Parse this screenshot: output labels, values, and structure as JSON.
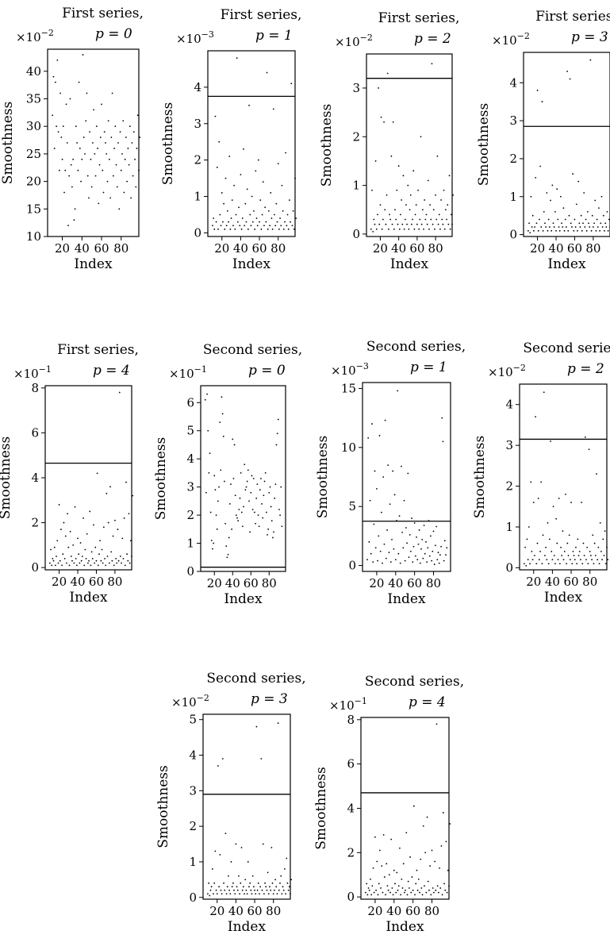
{
  "chart_data": [
    {
      "type": "scatter",
      "title_line1": "First series,",
      "title_line2": "p = 0",
      "multiplier": "×10",
      "multiplier_exp": "−2",
      "xlabel": "Index",
      "ylabel": "Smoothness",
      "xticks": [
        20,
        40,
        60,
        80
      ],
      "xlim": [
        5,
        98
      ],
      "ylim": [
        10,
        44
      ],
      "yticks": [
        10,
        15,
        20,
        25,
        30,
        35,
        40
      ],
      "threshold": null,
      "y": [
        32,
        39,
        26,
        38,
        30,
        42,
        29,
        22,
        36,
        28,
        24,
        30,
        18,
        22,
        34,
        27,
        12,
        21,
        35,
        23,
        19,
        24,
        13,
        15,
        30,
        27,
        22,
        38,
        26,
        20,
        24,
        43,
        28,
        25,
        31,
        36,
        21,
        17,
        29,
        24,
        19,
        27,
        33,
        25,
        21,
        30,
        26,
        16,
        23,
        28,
        34,
        22,
        18,
        29,
        27,
        25,
        20,
        31,
        24,
        17,
        28,
        36,
        21,
        26,
        30,
        23,
        19,
        27,
        15,
        29,
        22,
        25,
        31,
        18,
        24,
        28,
        20,
        26,
        23,
        30,
        17,
        27,
        21,
        29,
        24,
        19,
        26,
        32,
        22,
        28
      ]
    },
    {
      "type": "scatter",
      "title_line1": "First series,",
      "title_line2": "p = 1",
      "multiplier": "×10",
      "multiplier_exp": "−3",
      "xlabel": "Index",
      "ylabel": "Smoothness",
      "xticks": [
        20,
        40,
        60,
        80
      ],
      "xlim": [
        5,
        98
      ],
      "ylim": [
        -0.1,
        5
      ],
      "yticks": [
        0,
        1,
        2,
        3,
        4
      ],
      "threshold": 3.75,
      "y": [
        0.2,
        0.4,
        0.1,
        3.2,
        0.3,
        1.8,
        0.1,
        2.5,
        0.5,
        0.2,
        1.1,
        0.3,
        0.8,
        0.1,
        1.5,
        0.2,
        0.6,
        0.3,
        2.1,
        0.1,
        0.4,
        0.9,
        0.2,
        1.3,
        0.1,
        0.5,
        4.8,
        0.3,
        0.7,
        0.2,
        1.6,
        0.1,
        0.4,
        2.3,
        0.2,
        0.8,
        0.3,
        1.2,
        0.1,
        3.5,
        0.5,
        0.2,
        1.0,
        0.3,
        0.6,
        0.1,
        1.7,
        0.4,
        0.2,
        2.0,
        0.3,
        0.9,
        0.1,
        0.5,
        1.4,
        0.2,
        0.7,
        0.3,
        4.4,
        0.1,
        0.6,
        0.2,
        1.1,
        0.4,
        0.1,
        3.4,
        0.5,
        0.2,
        0.8,
        0.3,
        1.9,
        0.1,
        0.4,
        0.2,
        1.3,
        0.6,
        0.1,
        0.3,
        2.2,
        0.2,
        0.5,
        0.1,
        0.9,
        0.3,
        4.1,
        0.2,
        0.6,
        0.1,
        1.5,
        0.4
      ]
    },
    {
      "type": "scatter",
      "title_line1": "First series,",
      "title_line2": "p = 2",
      "multiplier": "×10",
      "multiplier_exp": "−2",
      "xlabel": "Index",
      "ylabel": "Smoothness",
      "xticks": [
        20,
        40,
        60,
        80
      ],
      "xlim": [
        5,
        98
      ],
      "ylim": [
        -0.05,
        3.7
      ],
      "yticks": [
        0,
        1,
        2,
        3
      ],
      "threshold": 3.2,
      "y": [
        0.1,
        0.9,
        0.05,
        0.3,
        0.2,
        1.5,
        0.1,
        0.4,
        3.0,
        0.2,
        0.6,
        2.4,
        0.1,
        0.3,
        2.3,
        0.5,
        0.2,
        0.8,
        3.3,
        0.1,
        0.4,
        0.3,
        1.6,
        0.2,
        2.3,
        0.1,
        0.5,
        0.3,
        0.9,
        0.2,
        1.4,
        0.1,
        0.4,
        0.7,
        0.2,
        1.2,
        0.1,
        0.3,
        0.6,
        0.2,
        1.0,
        0.1,
        0.5,
        0.8,
        0.2,
        0.3,
        1.3,
        0.1,
        0.4,
        0.6,
        0.2,
        0.9,
        0.1,
        0.3,
        2.0,
        0.2,
        0.5,
        0.1,
        0.7,
        0.3,
        0.4,
        0.2,
        1.1,
        0.1,
        0.6,
        0.3,
        3.5,
        0.2,
        0.5,
        0.1,
        0.8,
        0.3,
        1.6,
        0.2,
        0.4,
        0.1,
        0.7,
        0.3,
        0.2,
        0.9,
        0.1,
        0.5,
        0.3,
        0.6,
        0.2,
        1.2,
        0.1,
        0.4,
        0.2,
        0.8
      ]
    },
    {
      "type": "scatter",
      "title_line1": "First series,",
      "title_line2": "p = 3",
      "multiplier": "×10",
      "multiplier_exp": "−2",
      "xlabel": "Index",
      "ylabel": "Smoothness",
      "xticks": [
        20,
        40,
        60,
        80
      ],
      "xlim": [
        5,
        98
      ],
      "ylim": [
        -0.05,
        4.8
      ],
      "yticks": [
        0,
        1,
        2,
        3,
        4
      ],
      "threshold": 2.85,
      "y": [
        0.1,
        0.3,
        0.05,
        1.0,
        0.2,
        0.5,
        0.1,
        0.2,
        1.5,
        0.3,
        3.8,
        0.1,
        0.4,
        1.8,
        0.2,
        3.5,
        0.1,
        0.6,
        0.3,
        0.2,
        1.1,
        0.1,
        0.4,
        0.2,
        0.9,
        0.1,
        1.3,
        0.3,
        0.2,
        0.6,
        0.1,
        1.2,
        0.4,
        0.2,
        0.1,
        1.0,
        0.3,
        0.2,
        0.7,
        0.1,
        0.4,
        0.2,
        4.3,
        0.1,
        0.5,
        4.1,
        0.3,
        0.2,
        1.6,
        0.1,
        0.4,
        0.2,
        0.8,
        0.1,
        1.4,
        0.3,
        0.2,
        0.5,
        0.1,
        0.3,
        1.1,
        0.2,
        0.4,
        0.1,
        0.6,
        0.3,
        0.2,
        4.6,
        0.1,
        0.5,
        0.2,
        0.3,
        0.9,
        0.1,
        0.4,
        0.2,
        0.7,
        0.1,
        0.3,
        1.0,
        0.2,
        0.5,
        0.1,
        0.3,
        0.2,
        0.6,
        0.1,
        0.4,
        0.2,
        0.3
      ]
    },
    {
      "type": "scatter",
      "title_line1": "First series,",
      "title_line2": "p = 4",
      "multiplier": "×10",
      "multiplier_exp": "−1",
      "xlabel": "Index",
      "ylabel": "Smoothness",
      "xticks": [
        20,
        40,
        60,
        80
      ],
      "xlim": [
        5,
        98
      ],
      "ylim": [
        -0.1,
        8.1
      ],
      "yticks": [
        0,
        2,
        4,
        6,
        8
      ],
      "threshold": 4.65,
      "y": [
        0.2,
        0.8,
        0.1,
        0.4,
        0.3,
        0.9,
        0.1,
        0.5,
        1.2,
        0.2,
        2.8,
        0.3,
        1.7,
        0.1,
        0.6,
        2.0,
        0.4,
        1.4,
        0.2,
        2.4,
        0.9,
        0.1,
        1.6,
        0.5,
        0.3,
        1.0,
        0.2,
        2.7,
        0.4,
        0.1,
        1.3,
        0.6,
        0.2,
        1.1,
        0.3,
        0.5,
        2.2,
        0.1,
        0.8,
        0.4,
        1.5,
        0.2,
        0.3,
        2.5,
        0.1,
        0.7,
        0.4,
        1.9,
        0.2,
        0.9,
        0.3,
        4.2,
        0.1,
        0.6,
        1.2,
        0.3,
        0.8,
        0.2,
        1.8,
        0.4,
        0.1,
        3.3,
        0.5,
        2.0,
        0.2,
        3.6,
        0.7,
        0.3,
        1.4,
        0.1,
        2.1,
        0.4,
        0.2,
        1.7,
        0.3,
        7.8,
        0.5,
        0.2,
        1.3,
        0.4,
        2.2,
        0.1,
        3.8,
        0.6,
        0.3,
        2.4,
        0.2,
        1.2,
        0.5,
        3.2
      ]
    },
    {
      "type": "scatter",
      "title_line1": "Second series,",
      "title_line2": "p = 0",
      "multiplier": "×10",
      "multiplier_exp": "−1",
      "xlabel": "Index",
      "ylabel": "Smoothness",
      "xticks": [
        20,
        40,
        60,
        80
      ],
      "xlim": [
        5,
        98
      ],
      "ylim": [
        0,
        6.6
      ],
      "yticks": [
        0,
        1,
        2,
        3,
        4,
        5,
        6
      ],
      "threshold": 0.15,
      "y": [
        6.1,
        2.8,
        6.3,
        5.0,
        3.5,
        4.2,
        2.1,
        1.1,
        0.8,
        1.0,
        3.4,
        2.9,
        2.0,
        1.5,
        2.5,
        3.0,
        5.3,
        3.6,
        6.2,
        5.6,
        4.8,
        3.2,
        1.7,
        0.9,
        0.5,
        0.6,
        1.2,
        2.4,
        3.1,
        1.5,
        4.7,
        3.3,
        4.5,
        2.7,
        2.0,
        1.9,
        1.8,
        2.2,
        2.6,
        3.5,
        2.1,
        1.6,
        2.3,
        3.8,
        2.9,
        3.0,
        3.2,
        3.6,
        2.5,
        1.4,
        2.8,
        3.4,
        2.2,
        3.3,
        2.1,
        1.7,
        2.6,
        3.1,
        2.0,
        1.6,
        2.9,
        3.3,
        2.4,
        1.9,
        2.7,
        3.2,
        3.5,
        2.1,
        1.3,
        1.5,
        2.8,
        3.0,
        2.3,
        1.8,
        1.2,
        1.4,
        2.6,
        3.1,
        4.5,
        4.9,
        5.4,
        2.2,
        2.0,
        3.0,
        1.6
      ]
    },
    {
      "type": "scatter",
      "title_line1": "Second series,",
      "title_line2": "p = 1",
      "multiplier": "×10",
      "multiplier_exp": "−3",
      "xlabel": "Index",
      "ylabel": "Smoothness",
      "xticks": [
        20,
        40,
        60,
        80
      ],
      "xlim": [
        5,
        98
      ],
      "ylim": [
        -0.5,
        15.5
      ],
      "yticks": [
        0,
        5,
        10,
        15
      ],
      "threshold": 3.75,
      "y": [
        0.5,
        10.8,
        2.0,
        5.5,
        1.0,
        12.0,
        0.3,
        3.5,
        8.0,
        1.5,
        6.5,
        0.4,
        2.5,
        11.0,
        1.2,
        4.5,
        0.2,
        7.5,
        1.8,
        12.3,
        0.6,
        3.0,
        8.5,
        1.1,
        5.2,
        0.3,
        2.2,
        8.0,
        1.4,
        6.0,
        0.5,
        3.8,
        14.8,
        1.0,
        4.2,
        0.2,
        8.4,
        2.8,
        1.5,
        5.5,
        0.4,
        3.2,
        1.9,
        7.8,
        0.7,
        2.6,
        1.2,
        4.0,
        0.3,
        1.6,
        3.6,
        0.8,
        2.4,
        0.5,
        1.8,
        3.0,
        0.2,
        1.4,
        2.2,
        0.6,
        3.4,
        1.0,
        2.0,
        0.3,
        1.5,
        3.8,
        0.8,
        2.5,
        0.4,
        1.2,
        2.9,
        0.1,
        1.7,
        3.3,
        0.5,
        1.1,
        0.2,
        0.9,
        1.6,
        12.5,
        10.5,
        0.4,
        2.1,
        0.9,
        1.5
      ]
    },
    {
      "type": "scatter",
      "title_line1": "Second series,",
      "title_line2": "p = 2",
      "multiplier": "×10",
      "multiplier_exp": "−2",
      "xlabel": "Index",
      "ylabel": "Smoothness",
      "xticks": [
        20,
        40,
        60,
        80
      ],
      "xlim": [
        5,
        98
      ],
      "ylim": [
        -0.05,
        4.5
      ],
      "yticks": [
        0,
        1,
        2,
        3,
        4
      ],
      "threshold": 3.15,
      "y": [
        0.1,
        0.5,
        0.05,
        0.7,
        0.2,
        1.0,
        0.1,
        2.1,
        0.4,
        0.2,
        1.6,
        0.3,
        3.7,
        0.1,
        0.6,
        1.7,
        0.2,
        0.4,
        2.1,
        0.1,
        0.8,
        4.3,
        0.3,
        0.5,
        0.2,
        1.1,
        0.1,
        0.7,
        3.1,
        0.4,
        0.2,
        1.5,
        0.3,
        0.1,
        1.2,
        0.6,
        0.2,
        1.7,
        0.1,
        0.5,
        0.3,
        0.9,
        0.2,
        0.4,
        1.8,
        0.1,
        0.6,
        0.3,
        0.8,
        0.2,
        1.6,
        0.1,
        0.4,
        0.3,
        0.2,
        0.5,
        0.1,
        0.7,
        0.3,
        0.4,
        0.2,
        1.6,
        0.1,
        0.6,
        0.3,
        3.2,
        0.2,
        0.5,
        0.1,
        2.9,
        0.4,
        0.3,
        0.2,
        0.8,
        0.1,
        0.6,
        0.3,
        2.3,
        0.2,
        0.5,
        0.1,
        1.1,
        0.4,
        0.2,
        0.7,
        0.3,
        0.9,
        0.1,
        0.5,
        0.2
      ]
    },
    {
      "type": "scatter",
      "title_line1": "Second series,",
      "title_line2": "p = 3",
      "multiplier": "×10",
      "multiplier_exp": "−2",
      "xlabel": "Index",
      "ylabel": "Smoothness",
      "xticks": [
        20,
        40,
        60,
        80
      ],
      "xlim": [
        5,
        98
      ],
      "ylim": [
        -0.05,
        5.15
      ],
      "yticks": [
        0,
        1,
        2,
        3,
        4,
        5
      ],
      "threshold": 2.9,
      "y": [
        0.1,
        0.4,
        0.05,
        0.2,
        0.3,
        0.8,
        0.1,
        0.4,
        1.3,
        0.2,
        0.1,
        3.7,
        0.3,
        1.2,
        0.2,
        0.1,
        3.9,
        0.4,
        0.2,
        1.8,
        0.1,
        0.3,
        0.6,
        0.2,
        0.1,
        1.0,
        0.3,
        0.4,
        0.2,
        0.1,
        1.5,
        0.3,
        0.2,
        0.6,
        0.1,
        0.4,
        1.4,
        0.2,
        0.3,
        0.1,
        0.5,
        0.2,
        0.1,
        1.0,
        0.3,
        0.4,
        0.2,
        0.1,
        0.6,
        0.3,
        0.2,
        0.1,
        4.8,
        0.2,
        0.4,
        0.1,
        0.3,
        3.9,
        0.2,
        1.5,
        0.1,
        0.4,
        0.3,
        0.2,
        0.7,
        0.1,
        0.3,
        0.2,
        1.4,
        0.4,
        0.1,
        0.2,
        0.5,
        0.3,
        0.1,
        4.9,
        0.2,
        0.4,
        0.6,
        0.1,
        0.3,
        0.2,
        0.8,
        0.1,
        1.1,
        0.4,
        0.2,
        0.3,
        0.1,
        0.5
      ]
    },
    {
      "type": "scatter",
      "title_line1": "Second series,",
      "title_line2": "p = 4",
      "multiplier": "×10",
      "multiplier_exp": "−1",
      "xlabel": "Index",
      "ylabel": "Smoothness",
      "xticks": [
        20,
        40,
        60,
        80
      ],
      "xlim": [
        5,
        98
      ],
      "ylim": [
        -0.1,
        8.1
      ],
      "yticks": [
        0,
        2,
        4,
        6,
        8
      ],
      "threshold": 4.7,
      "y": [
        0.2,
        0.6,
        0.1,
        0.4,
        0.3,
        0.8,
        0.1,
        0.5,
        1.3,
        0.2,
        2.7,
        0.3,
        1.6,
        0.1,
        0.6,
        2.1,
        0.4,
        1.4,
        0.2,
        2.8,
        0.9,
        0.1,
        1.5,
        0.5,
        0.3,
        1.0,
        0.2,
        2.6,
        0.4,
        0.1,
        1.2,
        0.6,
        0.2,
        1.1,
        0.3,
        0.5,
        2.2,
        0.1,
        0.8,
        0.4,
        1.5,
        0.2,
        0.3,
        2.9,
        0.1,
        0.7,
        0.4,
        1.8,
        0.2,
        0.9,
        0.3,
        4.1,
        0.1,
        0.6,
        1.2,
        0.3,
        0.8,
        0.2,
        1.7,
        0.4,
        0.1,
        3.2,
        0.5,
        2.0,
        0.2,
        3.6,
        0.7,
        0.3,
        1.4,
        0.1,
        2.1,
        0.4,
        0.2,
        1.6,
        0.3,
        7.8,
        0.5,
        0.2,
        1.3,
        0.4,
        2.3,
        0.1,
        3.8,
        0.6,
        0.3,
        2.5,
        0.2,
        1.2,
        0.5,
        3.3
      ]
    }
  ]
}
